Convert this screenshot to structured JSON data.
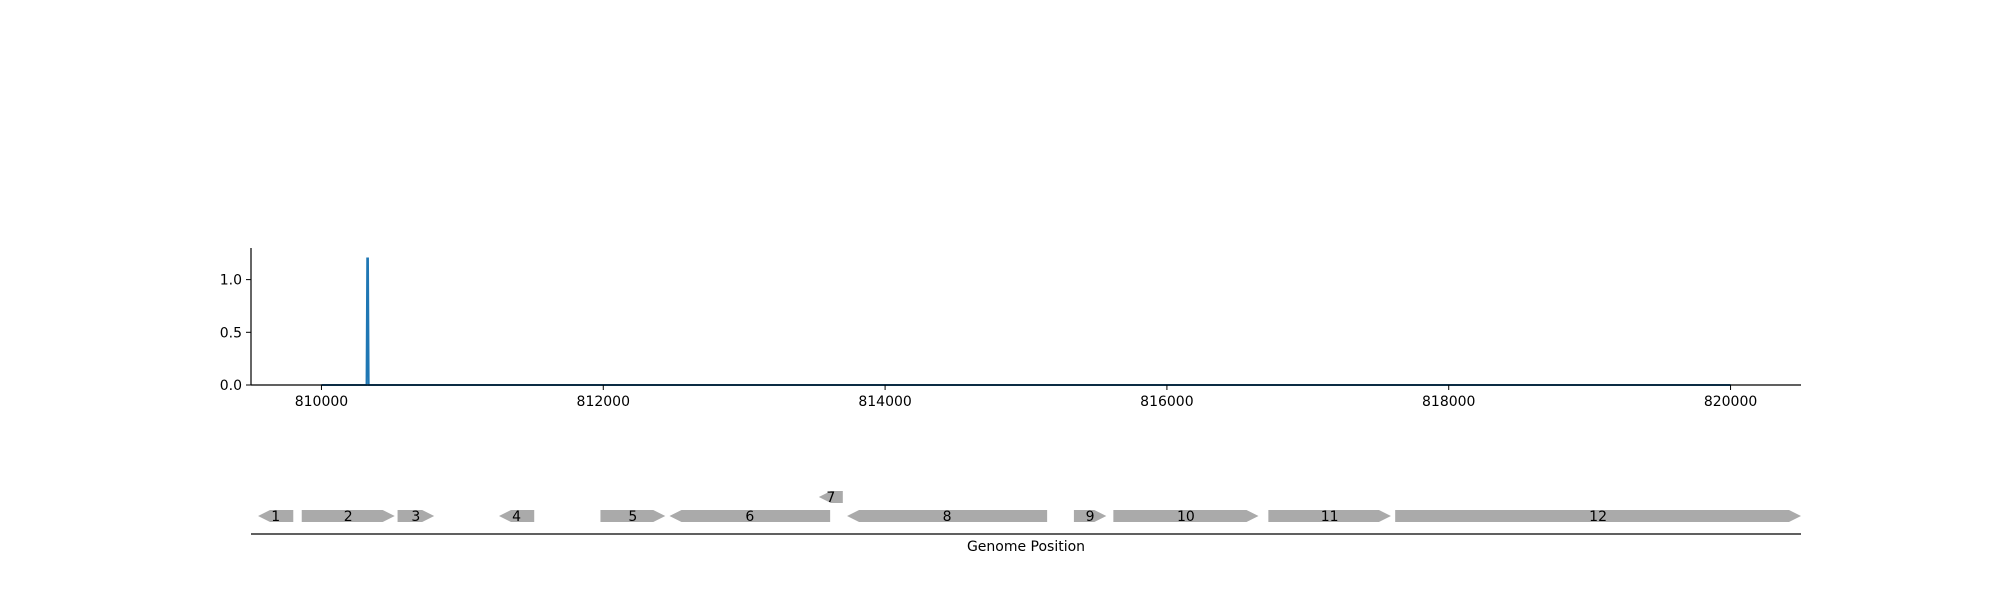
{
  "chart_data": [
    {
      "type": "line",
      "title": "",
      "xlabel": "",
      "ylabel": "",
      "xlim": [
        809500,
        820500
      ],
      "ylim": [
        0,
        1.3
      ],
      "xticks": [
        810000,
        812000,
        814000,
        816000,
        818000,
        820000
      ],
      "xtick_labels": [
        "810000",
        "812000",
        "814000",
        "816000",
        "818000",
        "820000"
      ],
      "yticks": [
        0.0,
        0.5,
        1.0
      ],
      "ytick_labels": [
        "0.0",
        "0.5",
        "1.0"
      ],
      "series": [
        {
          "color": "#1f77b4",
          "x": [
            810000,
            810320,
            810325,
            810330,
            810335,
            820000
          ],
          "y": [
            0.0,
            0.0,
            1.2,
            1.2,
            0.0,
            0.0
          ]
        }
      ],
      "grid": false
    },
    {
      "type": "gene_map",
      "xlabel": "Genome Position",
      "xlim": [
        809500,
        820500
      ],
      "gene_color": "#aaaaaa",
      "genes": [
        {
          "label": "1",
          "start": 809550,
          "end": 809800,
          "strand": "-"
        },
        {
          "label": "2",
          "start": 809860,
          "end": 810520,
          "strand": "+"
        },
        {
          "label": "3",
          "start": 810540,
          "end": 810800,
          "strand": "+"
        },
        {
          "label": "4",
          "start": 811260,
          "end": 811510,
          "strand": "-"
        },
        {
          "label": "5",
          "start": 811980,
          "end": 812440,
          "strand": "+"
        },
        {
          "label": "6",
          "start": 812470,
          "end": 813610,
          "strand": "-"
        },
        {
          "label": "7",
          "start": 813530,
          "end": 813700,
          "strand": "-",
          "row": 1
        },
        {
          "label": "8",
          "start": 813730,
          "end": 815150,
          "strand": "-"
        },
        {
          "label": "9",
          "start": 815340,
          "end": 815570,
          "strand": "+"
        },
        {
          "label": "10",
          "start": 815620,
          "end": 816650,
          "strand": "+"
        },
        {
          "label": "11",
          "start": 816720,
          "end": 817590,
          "strand": "+"
        },
        {
          "label": "12",
          "start": 817620,
          "end": 820500,
          "strand": "+"
        }
      ]
    }
  ]
}
